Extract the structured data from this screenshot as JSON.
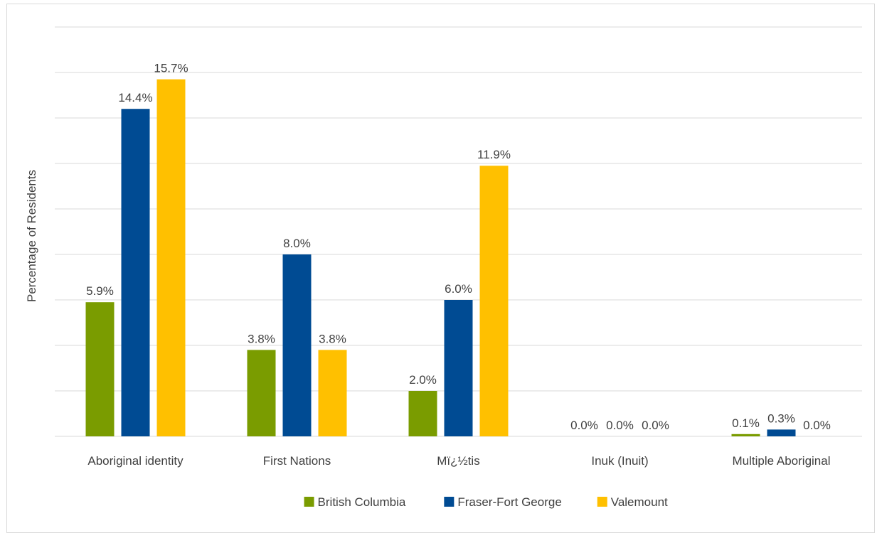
{
  "chart_data": {
    "type": "bar",
    "title": "",
    "xlabel": "",
    "ylabel": "Percentage of Residents",
    "ylim": [
      0,
      18
    ],
    "grid": true,
    "legend_position": "bottom",
    "categories": [
      "Aboriginal identity",
      "First Nations",
      "Mï¿½tis",
      "Inuk (Inuit)",
      "Multiple Aboriginal"
    ],
    "series": [
      {
        "name": "British Columbia",
        "color": "#7a9c00",
        "values": [
          5.9,
          3.8,
          2.0,
          0.0,
          0.1
        ],
        "labels": [
          "5.9%",
          "3.8%",
          "2.0%",
          "0.0%",
          "0.1%"
        ]
      },
      {
        "name": "Fraser-Fort George",
        "color": "#004b93",
        "values": [
          14.4,
          8.0,
          6.0,
          0.0,
          0.3
        ],
        "labels": [
          "14.4%",
          "8.0%",
          "6.0%",
          "0.0%",
          "0.3%"
        ]
      },
      {
        "name": "Valemount",
        "color": "#ffc000",
        "values": [
          15.7,
          3.8,
          11.9,
          0.0,
          0.0
        ],
        "labels": [
          "15.7%",
          "3.8%",
          "11.9%",
          "0.0%",
          "0.0%"
        ]
      }
    ]
  },
  "cut_title": "Aboriginal Identity"
}
